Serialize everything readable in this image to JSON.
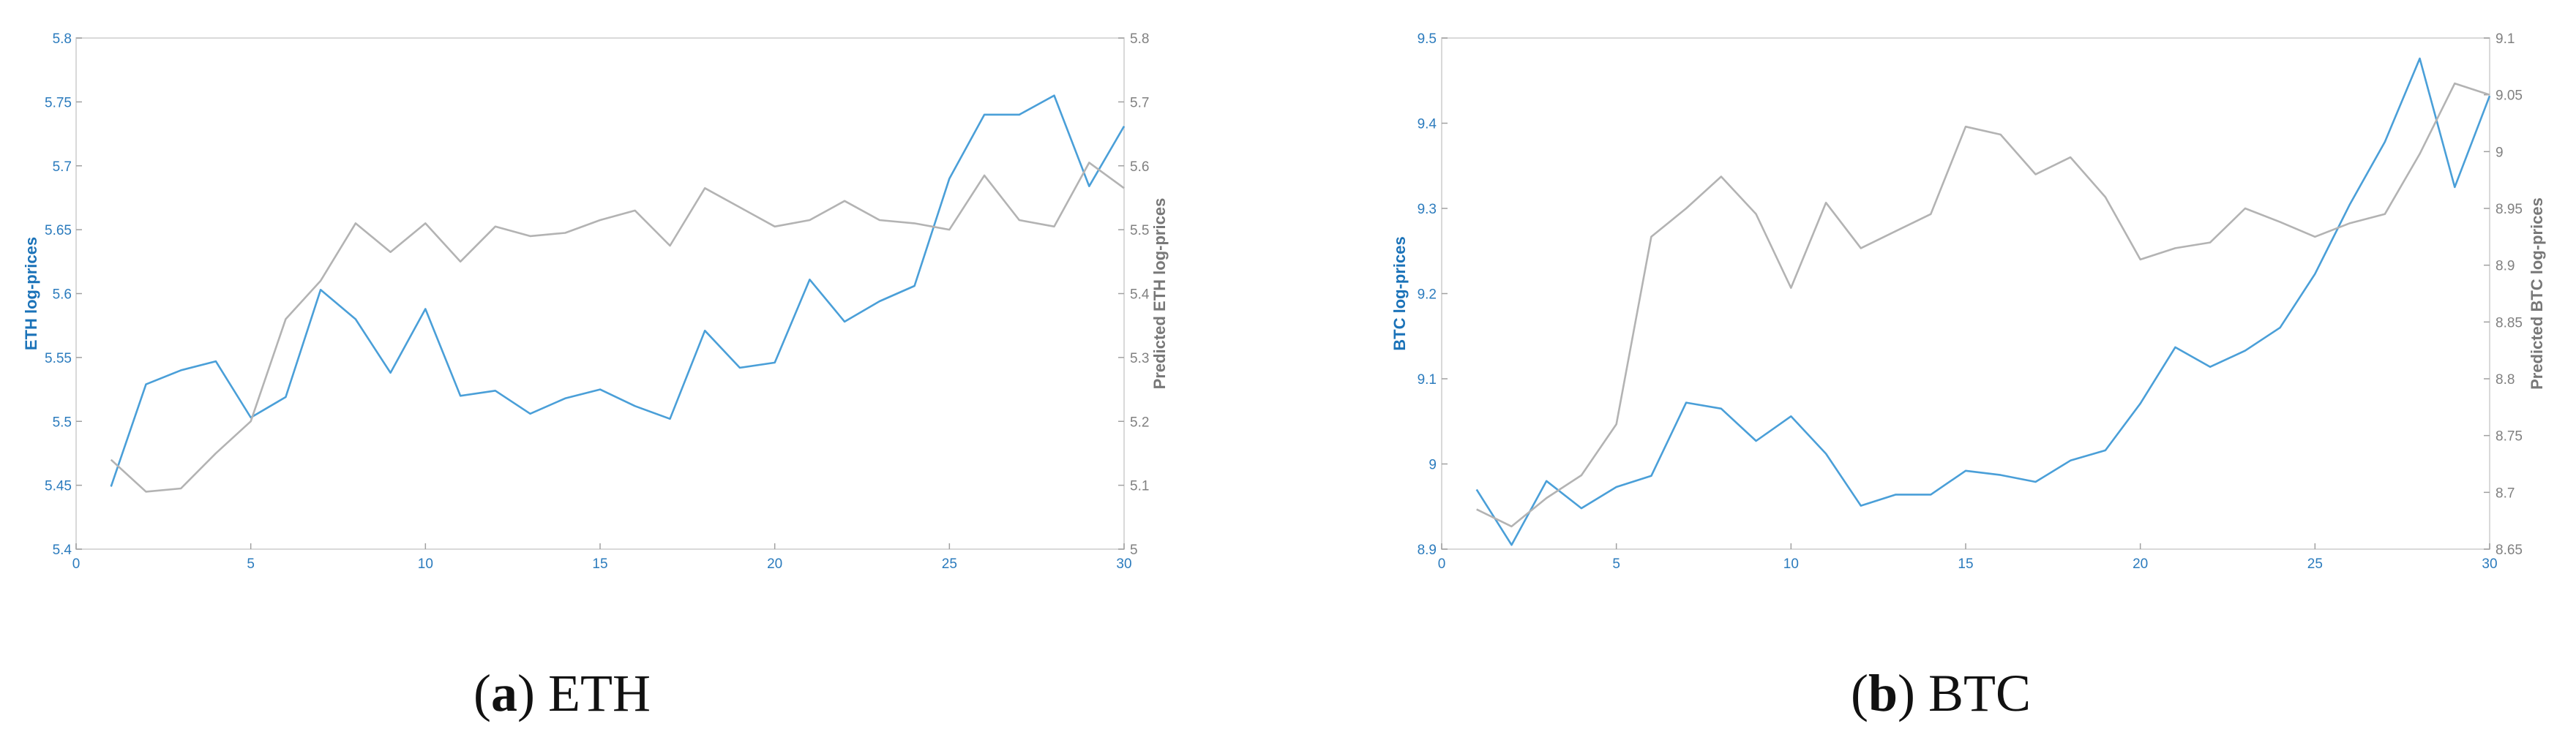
{
  "chart_data": [
    {
      "type": "line",
      "x": [
        1,
        2,
        3,
        4,
        5,
        6,
        7,
        8,
        9,
        10,
        11,
        12,
        13,
        14,
        15,
        16,
        17,
        18,
        19,
        20,
        21,
        22,
        23,
        24,
        25,
        26,
        27,
        28,
        29,
        30
      ],
      "xlim": [
        0,
        30
      ],
      "xticks": [
        0,
        5,
        10,
        15,
        20,
        25,
        30
      ],
      "ylabel_left": "ETH log-prices",
      "ylim_left": [
        5.4,
        5.8
      ],
      "yticks_left": [
        "5.4",
        "5.45",
        "5.5",
        "5.55",
        "5.6",
        "5.65",
        "5.7",
        "5.75",
        "5.8"
      ],
      "ylabel_right": "Predicted ETH log-prices",
      "ylim_right": [
        5.0,
        5.8
      ],
      "yticks_right": [
        "5",
        "5.1",
        "5.2",
        "5.3",
        "5.4",
        "5.5",
        "5.6",
        "5.7",
        "5.8"
      ],
      "series": [
        {
          "axis": "left",
          "color": "#4a9fd8",
          "values": [
            5.449,
            5.529,
            5.54,
            5.547,
            5.503,
            5.519,
            5.603,
            5.58,
            5.538,
            5.588,
            5.52,
            5.524,
            5.506,
            5.518,
            5.525,
            5.512,
            5.502,
            5.571,
            5.542,
            5.546,
            5.611,
            5.578,
            5.594,
            5.606,
            5.69,
            5.74,
            5.74,
            5.755,
            5.684,
            5.731
          ]
        },
        {
          "axis": "right",
          "color": "#b3b3b3",
          "values": [
            5.14,
            5.09,
            5.095,
            5.15,
            5.2,
            5.36,
            5.42,
            5.51,
            5.465,
            5.51,
            5.45,
            5.505,
            5.49,
            5.495,
            5.515,
            5.53,
            5.475,
            5.565,
            5.535,
            5.505,
            5.515,
            5.545,
            5.515,
            5.51,
            5.5,
            5.585,
            5.515,
            5.505,
            5.605,
            5.565
          ]
        }
      ],
      "caption_letter": "a",
      "caption_text": "ETH",
      "caption_open": "(",
      "caption_close": ")"
    },
    {
      "type": "line",
      "x": [
        1,
        2,
        3,
        4,
        5,
        6,
        7,
        8,
        9,
        10,
        11,
        12,
        13,
        14,
        15,
        16,
        17,
        18,
        19,
        20,
        21,
        22,
        23,
        24,
        25,
        26,
        27,
        28,
        29,
        30
      ],
      "xlim": [
        0,
        30
      ],
      "xticks": [
        0,
        5,
        10,
        15,
        20,
        25,
        30
      ],
      "ylabel_left": "BTC log-prices",
      "ylim_left": [
        8.9,
        9.5
      ],
      "yticks_left": [
        "8.9",
        "9",
        "9.1",
        "9.2",
        "9.3",
        "9.4",
        "9.5"
      ],
      "ylabel_right": "Predicted BTC log-prices",
      "ylim_right": [
        8.65,
        9.1
      ],
      "yticks_right": [
        "8.65",
        "8.7",
        "8.75",
        "8.8",
        "8.85",
        "8.9",
        "8.95",
        "9",
        "9.05",
        "9.1"
      ],
      "series": [
        {
          "axis": "left",
          "color": "#4a9fd8",
          "values": [
            8.97,
            8.905,
            8.98,
            8.948,
            8.973,
            8.986,
            9.072,
            9.065,
            9.027,
            9.056,
            9.012,
            8.951,
            8.964,
            8.964,
            8.992,
            8.987,
            8.979,
            9.004,
            9.016,
            9.071,
            9.137,
            9.114,
            9.133,
            9.16,
            9.223,
            9.305,
            9.378,
            9.476,
            9.325,
            9.432
          ]
        },
        {
          "axis": "right",
          "color": "#b3b3b3",
          "values": [
            8.685,
            8.67,
            8.695,
            8.715,
            8.76,
            8.925,
            8.95,
            8.978,
            8.945,
            8.88,
            8.955,
            8.915,
            8.93,
            8.945,
            9.022,
            9.015,
            8.98,
            8.995,
            8.96,
            8.905,
            8.915,
            8.92,
            8.95,
            8.938,
            8.925,
            8.937,
            8.945,
            8.998,
            9.06,
            9.05
          ]
        }
      ],
      "caption_letter": "b",
      "caption_text": "BTC",
      "caption_open": "(",
      "caption_close": ")"
    }
  ]
}
